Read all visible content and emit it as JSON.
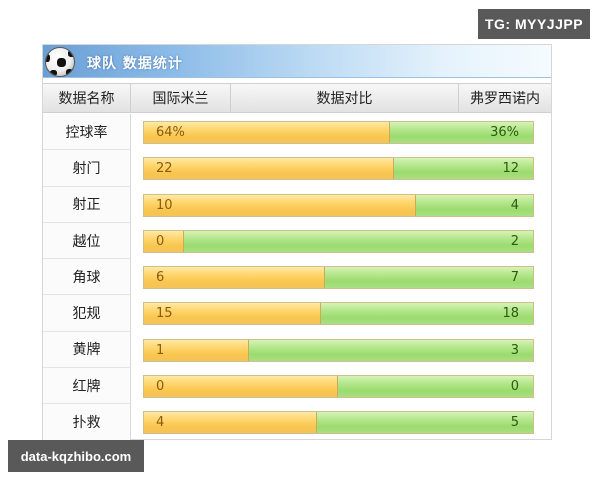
{
  "panel": {
    "title": "球队 数据统计",
    "icon": "soccer-ball-icon"
  },
  "header": {
    "name_col": "数据名称",
    "home_team": "国际米兰",
    "compare_col": "数据对比",
    "away_team": "弗罗西诺内"
  },
  "rows": [
    {
      "label": "控球率",
      "home": "64%",
      "away": "36%",
      "split_pct": 63.2
    },
    {
      "label": "射门",
      "home": "22",
      "away": "12",
      "split_pct": 64.2
    },
    {
      "label": "射正",
      "home": "10",
      "away": "4",
      "split_pct": 69.8
    },
    {
      "label": "越位",
      "home": "0",
      "away": "2",
      "split_pct": 10.2
    },
    {
      "label": "角球",
      "home": "6",
      "away": "7",
      "split_pct": 46.5
    },
    {
      "label": "犯规",
      "home": "15",
      "away": "18",
      "split_pct": 45.5
    },
    {
      "label": "黄牌",
      "home": "1",
      "away": "3",
      "split_pct": 26.9
    },
    {
      "label": "红牌",
      "home": "0",
      "away": "0",
      "split_pct": 49.9
    },
    {
      "label": "扑救",
      "home": "4",
      "away": "5",
      "split_pct": 44.5
    }
  ],
  "colors": {
    "home_bar": "#f9c64f",
    "away_bar": "#9bdb6e",
    "title_bar": "#6a9fd4"
  },
  "watermarks": {
    "top_right": "TG: MYYJJPP",
    "bottom_left": "data-kqzhibo.com"
  },
  "chart_data": {
    "type": "bar",
    "title": "球队 数据统计",
    "categories": [
      "控球率",
      "射门",
      "射正",
      "越位",
      "角球",
      "犯规",
      "黄牌",
      "红牌",
      "扑救"
    ],
    "series": [
      {
        "name": "国际米兰",
        "values": [
          64,
          22,
          10,
          0,
          6,
          15,
          1,
          0,
          4
        ]
      },
      {
        "name": "弗罗西诺内",
        "values": [
          36,
          12,
          4,
          2,
          7,
          18,
          3,
          0,
          5
        ]
      }
    ],
    "orientation": "horizontal-stacked-comparison",
    "xlabel": "数据对比",
    "ylabel": "数据名称"
  }
}
